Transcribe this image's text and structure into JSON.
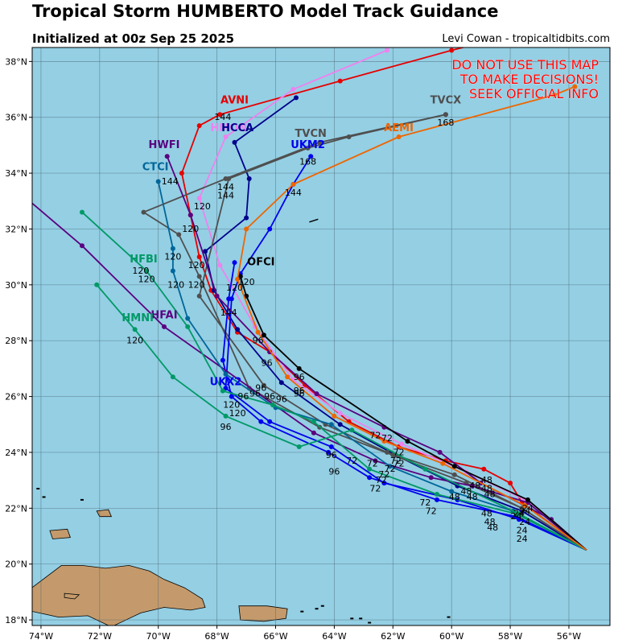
{
  "header": {
    "title": "Tropical Storm HUMBERTO Model Track Guidance",
    "subtitle": "Initialized at 00z Sep 25 2025",
    "credit": "Levi Cowan - tropicaltidbits.com"
  },
  "warning": [
    "DO NOT USE THIS MAP",
    "TO MAKE DECISIONS!",
    "SEEK OFFICIAL INFO"
  ],
  "map": {
    "lon_range": [
      -74.3,
      -54.6
    ],
    "lat_range": [
      17.8,
      38.5
    ],
    "lon_ticks": [
      -74,
      -72,
      -70,
      -68,
      -66,
      -64,
      -62,
      -60,
      -58,
      -56,
      -54
    ],
    "lon_tick_labels": [
      "74°W",
      "72°W",
      "70°W",
      "68°W",
      "66°W",
      "64°W",
      "62°W",
      "60°W",
      "58°W",
      "56°W",
      "54°W"
    ],
    "lat_ticks": [
      18,
      20,
      22,
      24,
      26,
      28,
      30,
      32,
      34,
      36,
      38
    ],
    "lat_tick_labels": [
      "18°N",
      "20°N",
      "22°N",
      "24°N",
      "26°N",
      "28°N",
      "30°N",
      "32°N",
      "34°N",
      "36°N",
      "38°N"
    ],
    "ocean_color": "#94cfe4",
    "land_color": "#c49a6c",
    "grid": true
  },
  "tracks": [
    {
      "name": "AVNI",
      "color": "#e60000",
      "label_pos": [
        -67.4,
        36.5
      ],
      "points": [
        [
          -55.4,
          20.5
        ],
        [
          -57.6,
          22.2
        ],
        [
          -58.0,
          22.9
        ],
        [
          -58.9,
          23.4
        ],
        [
          -60.2,
          23.7
        ],
        [
          -61.8,
          24.2
        ],
        [
          -63.5,
          25.1
        ],
        [
          -65.0,
          26.4
        ],
        [
          -66.2,
          27.6
        ],
        [
          -67.3,
          28.3
        ],
        [
          -68.2,
          29.8
        ],
        [
          -68.6,
          31.0
        ],
        [
          -68.9,
          32.5
        ],
        [
          -69.2,
          34.0
        ],
        [
          -68.6,
          35.7
        ],
        [
          -67.9,
          36.1
        ],
        [
          -63.8,
          37.3
        ],
        [
          -60.0,
          38.4
        ],
        [
          -58.5,
          38.8
        ]
      ]
    },
    {
      "name": "HMON",
      "color": "#ee82ee",
      "label_pos": [
        -67.6,
        35.5
      ],
      "points": [
        [
          -55.4,
          20.5
        ],
        [
          -57.5,
          22.3
        ],
        [
          -59.5,
          23.3
        ],
        [
          -61.7,
          24.3
        ],
        [
          -63.8,
          25.4
        ],
        [
          -65.4,
          26.6
        ],
        [
          -66.7,
          28.5
        ],
        [
          -67.9,
          30.7
        ],
        [
          -68.6,
          33.1
        ],
        [
          -67.7,
          35.3
        ],
        [
          -65.4,
          37.0
        ],
        [
          -62.2,
          38.4
        ]
      ]
    },
    {
      "name": "HCCA",
      "color": "#00008b",
      "label_pos": [
        -67.3,
        35.5
      ],
      "points": [
        [
          -55.4,
          20.5
        ],
        [
          -57.6,
          21.9
        ],
        [
          -59.8,
          22.8
        ],
        [
          -61.9,
          23.9
        ],
        [
          -63.8,
          25.0
        ],
        [
          -65.8,
          26.5
        ],
        [
          -67.3,
          28.4
        ],
        [
          -68.1,
          29.8
        ],
        [
          -68.4,
          31.2
        ],
        [
          -67.0,
          32.4
        ],
        [
          -66.9,
          33.8
        ],
        [
          -67.4,
          35.1
        ],
        [
          -65.3,
          36.7
        ]
      ]
    },
    {
      "name": "TVCN",
      "color": "#4f4f4f",
      "label_pos": [
        -64.8,
        35.3
      ],
      "points": [
        [
          -55.4,
          20.5
        ],
        [
          -57.6,
          22.0
        ],
        [
          -59.9,
          23.2
        ],
        [
          -62.2,
          24.0
        ],
        [
          -64.3,
          25.0
        ],
        [
          -66.4,
          26.4
        ],
        [
          -68.6,
          29.6
        ],
        [
          -67.6,
          33.8
        ],
        [
          -64.9,
          34.9
        ],
        [
          -63.5,
          35.3
        ],
        [
          -60.2,
          36.1
        ]
      ]
    },
    {
      "name": "TVCX",
      "color": "#4f4f4f",
      "label_pos": [
        -60.2,
        36.5
      ],
      "points": [
        [
          -55.4,
          20.5
        ],
        [
          -57.6,
          22.0
        ],
        [
          -59.5,
          22.9
        ],
        [
          -62.0,
          23.9
        ],
        [
          -64.5,
          24.9
        ],
        [
          -66.9,
          26.3
        ],
        [
          -68.6,
          30.3
        ],
        [
          -69.3,
          31.8
        ],
        [
          -70.5,
          32.6
        ],
        [
          -67.7,
          33.8
        ],
        [
          -64.5,
          35.1
        ],
        [
          -60.2,
          36.1
        ]
      ]
    },
    {
      "name": "UKM2",
      "color": "#0000ee",
      "label_pos": [
        -64.9,
        34.9
      ],
      "points": [
        [
          -55.4,
          20.5
        ],
        [
          -57.7,
          21.6
        ],
        [
          -59.8,
          22.3
        ],
        [
          -62.3,
          22.9
        ],
        [
          -64.1,
          24.2
        ],
        [
          -66.2,
          25.1
        ],
        [
          -67.7,
          26.3
        ],
        [
          -67.5,
          29.5
        ],
        [
          -67.2,
          30.4
        ],
        [
          -66.2,
          32.0
        ],
        [
          -65.4,
          33.6
        ],
        [
          -64.8,
          34.6
        ]
      ]
    },
    {
      "name": "UKX2",
      "color": "#0000ee",
      "label_pos": [
        -67.7,
        26.4
      ],
      "points": [
        [
          -55.4,
          20.5
        ],
        [
          -57.8,
          21.7
        ],
        [
          -60.5,
          22.3
        ],
        [
          -62.8,
          23.1
        ],
        [
          -64.2,
          24.0
        ],
        [
          -66.5,
          25.1
        ],
        [
          -67.5,
          26.0
        ],
        [
          -67.8,
          27.3
        ],
        [
          -67.6,
          29.5
        ],
        [
          -67.4,
          30.8
        ]
      ]
    },
    {
      "name": "HWFI",
      "color": "#5a0080",
      "label_pos": [
        -69.8,
        34.9
      ],
      "points": [
        [
          -55.4,
          20.5
        ],
        [
          -56.6,
          21.6
        ],
        [
          -59.0,
          22.9
        ],
        [
          -60.4,
          24.0
        ],
        [
          -62.3,
          24.9
        ],
        [
          -64.6,
          26.1
        ],
        [
          -66.2,
          27.6
        ],
        [
          -68.0,
          29.6
        ],
        [
          -68.9,
          32.5
        ],
        [
          -69.7,
          34.6
        ]
      ]
    },
    {
      "name": "HFAI",
      "color": "#5a0080",
      "label_pos": [
        -69.8,
        28.8
      ],
      "points": [
        [
          -55.4,
          20.5
        ],
        [
          -57.4,
          22.2
        ],
        [
          -59.3,
          22.8
        ],
        [
          -60.7,
          23.1
        ],
        [
          -62.6,
          23.7
        ],
        [
          -64.7,
          24.7
        ],
        [
          -69.8,
          28.5
        ],
        [
          -72.6,
          31.4
        ],
        [
          -74.5,
          33.1
        ]
      ]
    },
    {
      "name": "CTCI",
      "color": "#006699",
      "label_pos": [
        -70.1,
        34.1
      ],
      "points": [
        [
          -55.4,
          20.5
        ],
        [
          -57.9,
          21.9
        ],
        [
          -60.0,
          22.6
        ],
        [
          -62.1,
          23.5
        ],
        [
          -64.1,
          25.0
        ],
        [
          -66.0,
          25.6
        ],
        [
          -67.7,
          26.8
        ],
        [
          -69.0,
          28.8
        ],
        [
          -69.5,
          30.5
        ],
        [
          -69.5,
          31.3
        ],
        [
          -70.0,
          33.7
        ]
      ]
    },
    {
      "name": "HFBI",
      "color": "#009966",
      "label_pos": [
        -70.5,
        30.8
      ],
      "points": [
        [
          -55.4,
          20.5
        ],
        [
          -57.8,
          21.8
        ],
        [
          -60.5,
          22.5
        ],
        [
          -62.8,
          23.4
        ],
        [
          -64.7,
          25.1
        ],
        [
          -66.1,
          25.7
        ],
        [
          -67.8,
          26.2
        ],
        [
          -69.0,
          28.5
        ],
        [
          -70.4,
          30.5
        ],
        [
          -72.6,
          32.6
        ]
      ]
    },
    {
      "name": "HMNI",
      "color": "#009966",
      "label_pos": [
        -70.7,
        28.7
      ],
      "points": [
        [
          -55.4,
          20.5
        ],
        [
          -57.7,
          21.8
        ],
        [
          -60.9,
          23.4
        ],
        [
          -63.4,
          24.8
        ],
        [
          -65.2,
          24.2
        ],
        [
          -67.7,
          25.3
        ],
        [
          -69.5,
          26.7
        ],
        [
          -70.8,
          28.4
        ],
        [
          -72.1,
          30.0
        ]
      ]
    },
    {
      "name": "OFCI",
      "color": "#000000",
      "label_pos": [
        -66.5,
        30.7
      ],
      "points": [
        [
          -55.4,
          20.5
        ],
        [
          -57.4,
          22.3
        ],
        [
          -59.9,
          23.5
        ],
        [
          -61.5,
          24.4
        ],
        [
          -65.2,
          27.0
        ],
        [
          -66.4,
          28.2
        ],
        [
          -67.0,
          29.6
        ],
        [
          -67.2,
          30.3
        ]
      ]
    },
    {
      "name": "AEMI",
      "color": "#ee6600",
      "label_pos": [
        -61.8,
        35.5
      ],
      "points": [
        [
          -55.4,
          20.5
        ],
        [
          -57.5,
          22.1
        ],
        [
          -60.3,
          23.6
        ],
        [
          -62.3,
          24.4
        ],
        [
          -64.0,
          25.3
        ],
        [
          -65.6,
          26.7
        ],
        [
          -66.6,
          28.3
        ],
        [
          -67.3,
          30.2
        ],
        [
          -67.0,
          32.0
        ],
        [
          -65.4,
          33.6
        ],
        [
          -61.8,
          35.3
        ],
        [
          -56.5,
          36.8
        ],
        [
          -55.8,
          37.1
        ]
      ]
    }
  ],
  "hour_labels": [
    {
      "text": "168",
      "at": [
        -64.9,
        34.3
      ]
    },
    {
      "text": "168",
      "at": [
        -60.2,
        35.7
      ]
    },
    {
      "text": "144",
      "at": [
        -65.4,
        33.2
      ]
    },
    {
      "text": "144",
      "at": [
        -69.6,
        33.6
      ]
    },
    {
      "text": "144",
      "at": [
        -67.7,
        33.4
      ]
    },
    {
      "text": "144",
      "at": [
        -67.7,
        33.1
      ]
    },
    {
      "text": "144",
      "at": [
        -67.6,
        28.9
      ]
    },
    {
      "text": "144",
      "at": [
        -67.8,
        35.9
      ]
    },
    {
      "text": "120",
      "at": [
        -68.5,
        32.7
      ]
    },
    {
      "text": "120",
      "at": [
        -68.9,
        31.9
      ]
    },
    {
      "text": "120",
      "at": [
        -69.5,
        30.9
      ]
    },
    {
      "text": "120",
      "at": [
        -68.7,
        30.6
      ]
    },
    {
      "text": "120",
      "at": [
        -70.6,
        30.4
      ]
    },
    {
      "text": "120",
      "at": [
        -70.4,
        30.1
      ]
    },
    {
      "text": "120",
      "at": [
        -69.4,
        29.9
      ]
    },
    {
      "text": "120",
      "at": [
        -68.7,
        29.9
      ]
    },
    {
      "text": "120",
      "at": [
        -67.4,
        29.8
      ]
    },
    {
      "text": "120",
      "at": [
        -67.0,
        30.0
      ]
    },
    {
      "text": "120",
      "at": [
        -70.8,
        27.9
      ]
    },
    {
      "text": "120",
      "at": [
        -67.5,
        25.6
      ]
    },
    {
      "text": "120",
      "at": [
        -67.3,
        25.3
      ]
    },
    {
      "text": "96",
      "at": [
        -66.6,
        27.9
      ]
    },
    {
      "text": "96",
      "at": [
        -66.3,
        27.1
      ]
    },
    {
      "text": "96",
      "at": [
        -65.2,
        26.6
      ]
    },
    {
      "text": "96",
      "at": [
        -65.2,
        26.1
      ]
    },
    {
      "text": "96",
      "at": [
        -65.2,
        26.0
      ]
    },
    {
      "text": "96",
      "at": [
        -66.5,
        26.2
      ]
    },
    {
      "text": "96",
      "at": [
        -66.7,
        26.0
      ]
    },
    {
      "text": "96",
      "at": [
        -67.1,
        25.9
      ]
    },
    {
      "text": "96",
      "at": [
        -66.2,
        25.9
      ]
    },
    {
      "text": "96",
      "at": [
        -65.8,
        25.8
      ]
    },
    {
      "text": "96",
      "at": [
        -67.7,
        24.8
      ]
    },
    {
      "text": "96",
      "at": [
        -64.1,
        23.8
      ]
    },
    {
      "text": "96",
      "at": [
        -64.0,
        23.2
      ]
    },
    {
      "text": "72",
      "at": [
        -62.6,
        24.5
      ]
    },
    {
      "text": "72",
      "at": [
        -62.2,
        24.4
      ]
    },
    {
      "text": "72",
      "at": [
        -61.8,
        23.9
      ]
    },
    {
      "text": "72",
      "at": [
        -61.9,
        23.6
      ]
    },
    {
      "text": "72",
      "at": [
        -61.8,
        23.5
      ]
    },
    {
      "text": "72",
      "at": [
        -62.1,
        23.3
      ]
    },
    {
      "text": "72",
      "at": [
        -62.3,
        23.1
      ]
    },
    {
      "text": "72",
      "at": [
        -63.4,
        23.6
      ]
    },
    {
      "text": "72",
      "at": [
        -62.7,
        23.5
      ]
    },
    {
      "text": "72",
      "at": [
        -62.4,
        22.9
      ]
    },
    {
      "text": "72",
      "at": [
        -62.6,
        22.6
      ]
    },
    {
      "text": "72",
      "at": [
        -60.9,
        22.1
      ]
    },
    {
      "text": "72",
      "at": [
        -60.7,
        21.8
      ]
    },
    {
      "text": "48",
      "at": [
        -58.8,
        22.9
      ]
    },
    {
      "text": "48",
      "at": [
        -59.2,
        22.7
      ]
    },
    {
      "text": "48",
      "at": [
        -58.8,
        22.6
      ]
    },
    {
      "text": "48",
      "at": [
        -59.5,
        22.5
      ]
    },
    {
      "text": "48",
      "at": [
        -58.7,
        22.4
      ]
    },
    {
      "text": "48",
      "at": [
        -59.9,
        22.3
      ]
    },
    {
      "text": "48",
      "at": [
        -59.3,
        22.3
      ]
    },
    {
      "text": "48",
      "at": [
        -58.8,
        21.7
      ]
    },
    {
      "text": "48",
      "at": [
        -58.7,
        21.4
      ]
    },
    {
      "text": "48",
      "at": [
        -58.6,
        21.2
      ]
    },
    {
      "text": "24",
      "at": [
        -57.4,
        21.9
      ]
    },
    {
      "text": "24",
      "at": [
        -57.5,
        21.8
      ]
    },
    {
      "text": "24",
      "at": [
        -57.7,
        21.7
      ]
    },
    {
      "text": "24",
      "at": [
        -57.8,
        21.6
      ]
    },
    {
      "text": "24",
      "at": [
        -57.5,
        21.4
      ]
    },
    {
      "text": "24",
      "at": [
        -57.6,
        21.1
      ]
    },
    {
      "text": "24",
      "at": [
        -57.6,
        20.8
      ]
    }
  ]
}
